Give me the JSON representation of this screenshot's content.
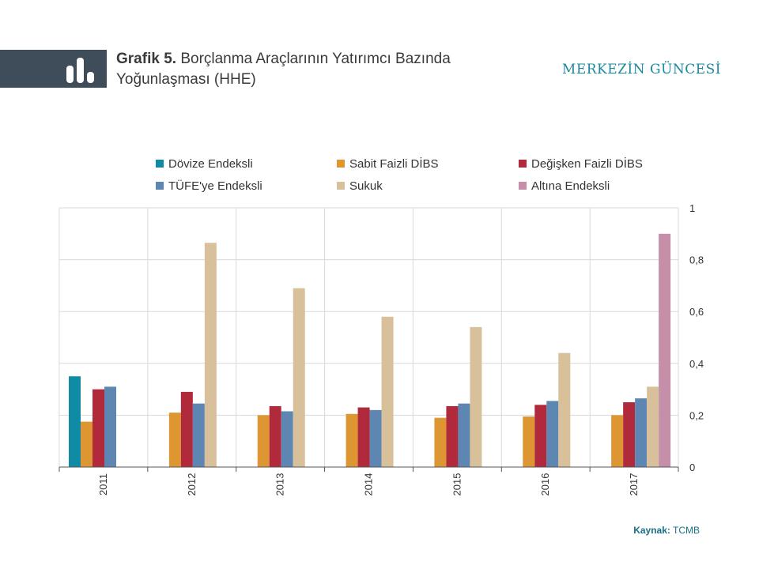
{
  "header": {
    "title_lead": "Grafik 5.",
    "title_rest": "Borçlanma Araçlarının Yatırımcı Bazında Yoğunlaşması (HHE)",
    "brand": "MERKEZİN GÜNCESİ"
  },
  "source": {
    "label": "Kaynak:",
    "value": "TCMB"
  },
  "colors": {
    "Dövize Endeksli": "#0f8ba6",
    "Sabit Faizli DİBS": "#dd9632",
    "Değişken Faizli DİBS": "#b12a3c",
    "TÜFE'ye Endeksli": "#5d87b2",
    "Sukuk": "#d8c09a",
    "Altına Endeksli": "#c58fa9",
    "grid": "#d9d9d9",
    "axis": "#555555"
  },
  "chart_data": {
    "type": "bar",
    "categories": [
      "2011",
      "2012",
      "2013",
      "2014",
      "2015",
      "2016",
      "2017"
    ],
    "series": [
      {
        "name": "Dövize Endeksli",
        "values": [
          0.35,
          null,
          null,
          null,
          null,
          null,
          null
        ]
      },
      {
        "name": "Sabit Faizli DİBS",
        "values": [
          0.175,
          0.21,
          0.2,
          0.205,
          0.19,
          0.195,
          0.2
        ]
      },
      {
        "name": "Değişken Faizli DİBS",
        "values": [
          0.3,
          0.29,
          0.235,
          0.23,
          0.235,
          0.24,
          0.25
        ]
      },
      {
        "name": "TÜFE'ye Endeksli",
        "values": [
          0.31,
          0.245,
          0.215,
          0.22,
          0.245,
          0.255,
          0.265
        ]
      },
      {
        "name": "Sukuk",
        "values": [
          null,
          0.865,
          0.69,
          0.58,
          0.54,
          0.44,
          0.31
        ]
      },
      {
        "name": "Altına Endeksli",
        "values": [
          null,
          null,
          null,
          null,
          null,
          null,
          0.9
        ]
      }
    ],
    "y_ticks": [
      "0",
      "0,2",
      "0,4",
      "0,6",
      "0,8",
      "1"
    ],
    "ylim": [
      0,
      1
    ],
    "grid": true,
    "legend_position": "top"
  }
}
